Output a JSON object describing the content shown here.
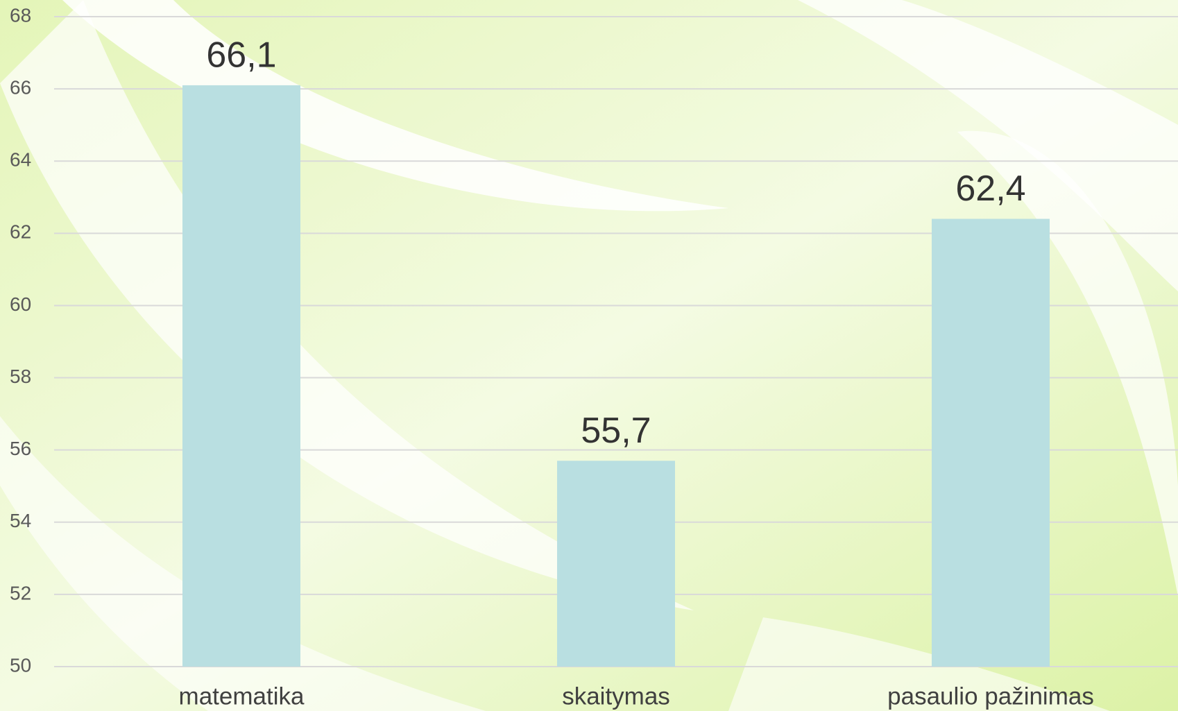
{
  "chart_data": {
    "type": "bar",
    "categories": [
      "matematika",
      "skaitymas",
      "pasaulio pažinimas"
    ],
    "values": [
      66.1,
      55.7,
      62.4
    ],
    "value_labels": [
      "66,1",
      "55,7",
      "62,4"
    ],
    "color": "#b9dfe1",
    "ylim": [
      50,
      68
    ],
    "yticks": [
      50,
      52,
      54,
      56,
      58,
      60,
      62,
      64,
      66,
      68
    ],
    "grid": true
  }
}
